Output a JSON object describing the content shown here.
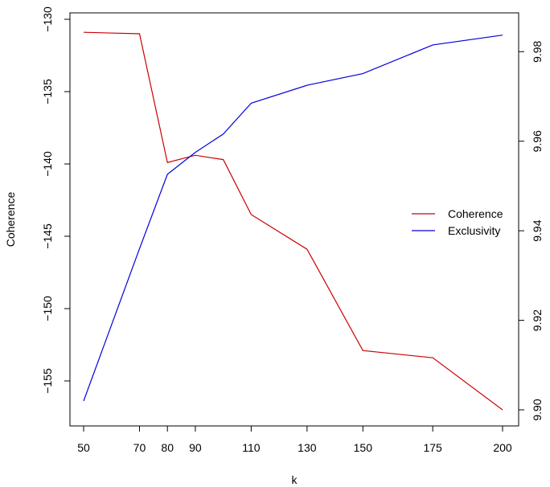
{
  "chart_data": {
    "type": "line",
    "xlabel": "k",
    "ylabel": "Coherence",
    "x": [
      50,
      70,
      80,
      90,
      100,
      110,
      130,
      150,
      175,
      200
    ],
    "xticks": [
      50,
      70,
      80,
      90,
      110,
      130,
      150,
      175,
      200
    ],
    "xlim": [
      50,
      200
    ],
    "ylim_left": [
      -157,
      -131
    ],
    "yticks_left": [
      -155,
      -150,
      -145,
      -140,
      -135,
      -130
    ],
    "ylim_right": [
      9.9,
      9.984
    ],
    "yticks_right": [
      "9.90",
      "9.92",
      "9.94",
      "9.96",
      "9.98"
    ],
    "grid": false,
    "legend_position": "right",
    "series": [
      {
        "name": "Coherence",
        "axis": "left",
        "color": "#cc0000",
        "values": [
          -130.9,
          -131.0,
          -139.9,
          -139.4,
          -139.7,
          -143.5,
          -145.9,
          -152.9,
          -153.4,
          -157.0
        ]
      },
      {
        "name": "Exclusivity",
        "axis": "right",
        "color": "#0000dd",
        "values": [
          9.902,
          9.936,
          9.9526,
          9.9575,
          9.9616,
          9.9685,
          9.9725,
          9.9751,
          9.9815,
          9.9837
        ]
      }
    ]
  }
}
